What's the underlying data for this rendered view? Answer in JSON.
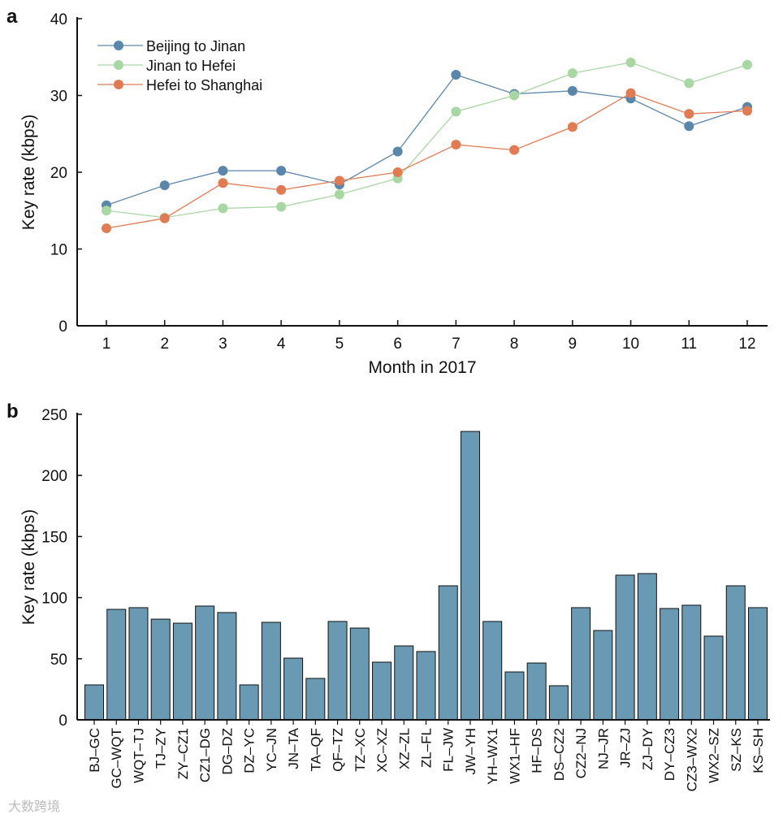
{
  "watermark": "大数跨境",
  "chart_data": [
    {
      "panel": "a",
      "type": "line",
      "title": "",
      "xlabel": "Month in 2017",
      "ylabel": "Key rate (kbps)",
      "ylim": [
        0,
        40
      ],
      "yticks": [
        0,
        10,
        20,
        30,
        40
      ],
      "x": [
        1,
        2,
        3,
        4,
        5,
        6,
        7,
        8,
        9,
        10,
        11,
        12
      ],
      "legend_position": "top-left",
      "series": [
        {
          "name": "Beijing to Jinan",
          "color": "#5b86ac",
          "values": [
            15.7,
            18.3,
            20.2,
            20.2,
            18.4,
            22.7,
            32.7,
            30.2,
            30.6,
            29.6,
            26.0,
            28.5
          ]
        },
        {
          "name": "Jinan to Hefei",
          "color": "#a9d7a4",
          "values": [
            15.0,
            14.1,
            15.3,
            15.5,
            17.1,
            19.2,
            27.9,
            30.0,
            32.9,
            34.3,
            31.6,
            34.0
          ]
        },
        {
          "name": "Hefei to Shanghai",
          "color": "#e07b54",
          "values": [
            12.7,
            14.0,
            18.6,
            17.7,
            18.9,
            20.0,
            23.6,
            22.9,
            25.9,
            30.3,
            27.6,
            28.0
          ]
        }
      ]
    },
    {
      "panel": "b",
      "type": "bar",
      "title": "",
      "xlabel": "",
      "ylabel": "Key rate (kbps)",
      "ylim": [
        0,
        250
      ],
      "yticks": [
        0,
        50,
        100,
        150,
        200,
        250
      ],
      "color": "#6a9ab3",
      "categories": [
        "BJ–GC",
        "GC–WQT",
        "WQT–TJ",
        "TJ–ZY",
        "ZY–CZ1",
        "CZ1–DG",
        "DG–DZ",
        "DZ–YC",
        "YC–JN",
        "JN–TA",
        "TA–QF",
        "QF–TZ",
        "TZ–XC",
        "XC–XZ",
        "XZ–ZL",
        "ZL–FL",
        "FL–JW",
        "JW–YH",
        "YH–WX1",
        "WX1–HF",
        "HF–DS",
        "DS–CZ2",
        "CZ2–NJ",
        "NJ–JR",
        "JR–ZJ",
        "ZJ–DY",
        "DY–CZ3",
        "CZ3–WX2",
        "WX2–SZ",
        "SZ–KS",
        "KS–SH"
      ],
      "values": [
        28.6,
        90.4,
        91.8,
        82.4,
        79.1,
        93.1,
        87.8,
        28.6,
        79.8,
        50.5,
        33.9,
        80.5,
        75.1,
        47.2,
        60.5,
        55.9,
        109.7,
        236,
        80.5,
        39.2,
        46.5,
        27.9,
        91.8,
        73.1,
        118.4,
        119.7,
        91.1,
        93.8,
        68.5,
        109.7,
        91.8
      ]
    }
  ]
}
